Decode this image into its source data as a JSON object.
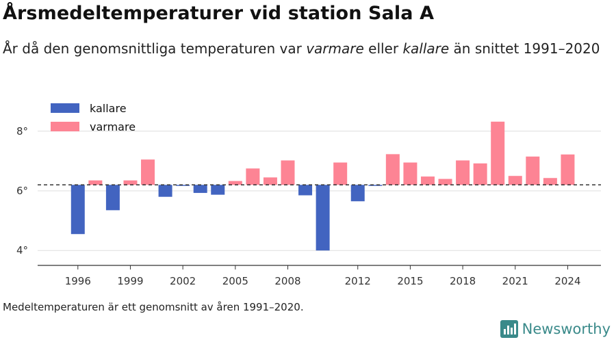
{
  "title": "Årsmedeltemperaturer vid station Sala A",
  "subtitle": {
    "part1": "År då den genomsnittliga temperaturen var ",
    "warm_word": "varmare",
    "part2": " eller ",
    "cold_word": "kallare",
    "part3": " än snittet 1991–2020"
  },
  "footnote": "Medeltemperaturen är ett genomsnitt av åren 1991–2020.",
  "brand": {
    "name": "Newsworthy",
    "icon": "newsworthy-logo-icon",
    "color": "#3a8a8a"
  },
  "colors": {
    "kallare": "#4264c0",
    "varmare": "#fd8494",
    "reference": "#333333",
    "grid": "#dddddd",
    "axis": "#333333"
  },
  "chart_data": {
    "type": "bar",
    "title": "Årsmedeltemperaturer vid station Sala A",
    "baseline": 6.2,
    "ylim": [
      3.5,
      8.5
    ],
    "yticks": [
      4,
      6,
      8
    ],
    "ytick_labels": [
      "4°",
      "6°",
      "8°"
    ],
    "xlim": [
      1993.7,
      2025.9
    ],
    "xticks": [
      1996,
      1999,
      2002,
      2005,
      2008,
      2012,
      2015,
      2018,
      2021,
      2024
    ],
    "legend": [
      {
        "key": "kallare",
        "label": "kallare"
      },
      {
        "key": "varmare",
        "label": "varmare"
      }
    ],
    "legend_position": "top-left",
    "grid": "horizontal",
    "x": [
      1996,
      1997,
      1998,
      1999,
      2000,
      2001,
      2002,
      2003,
      2004,
      2005,
      2006,
      2007,
      2008,
      2009,
      2010,
      2011,
      2012,
      2013,
      2014,
      2015,
      2016,
      2017,
      2018,
      2019,
      2020,
      2021,
      2022,
      2023,
      2024
    ],
    "values": [
      4.55,
      6.35,
      5.35,
      6.35,
      7.05,
      5.8,
      6.18,
      5.93,
      5.87,
      6.33,
      6.75,
      6.45,
      7.02,
      5.85,
      4.0,
      6.95,
      5.65,
      6.17,
      7.23,
      6.95,
      6.48,
      6.4,
      7.02,
      6.92,
      8.32,
      6.5,
      7.15,
      6.43,
      7.22
    ]
  }
}
